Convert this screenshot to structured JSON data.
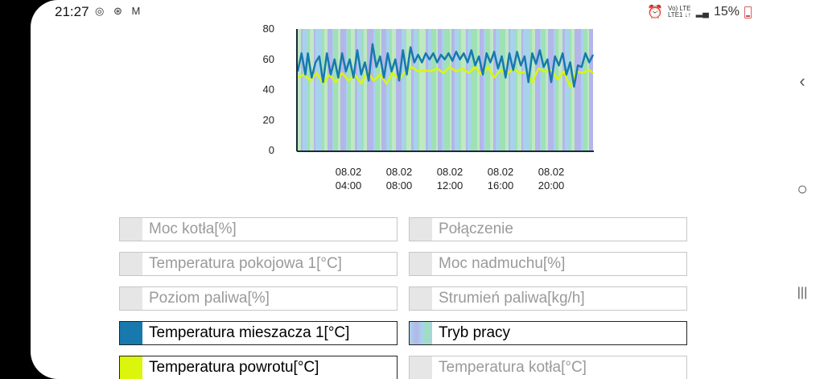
{
  "status": {
    "time": "21:27",
    "left_icons": "◎ ⊛ M",
    "net": "Vo) LTE",
    "net2": "LTE1 ↓↑",
    "battery": "15%"
  },
  "chart_data": {
    "type": "line",
    "ylim": [
      0,
      80
    ],
    "y_ticks": [
      "0",
      "20",
      "40",
      "60",
      "80"
    ],
    "x_ticks": [
      {
        "date": "08.02",
        "time": "04:00"
      },
      {
        "date": "08.02",
        "time": "08:00"
      },
      {
        "date": "08.02",
        "time": "12:00"
      },
      {
        "date": "08.02",
        "time": "16:00"
      },
      {
        "date": "08.02",
        "time": "20:00"
      }
    ],
    "x_range_hours": [
      0,
      23.3
    ],
    "series": [
      {
        "name": "Temperatura mieszacza 1[°C]",
        "color": "#1779ad",
        "x": [
          0,
          0.3,
          0.6,
          0.8,
          1.1,
          1.4,
          1.7,
          2.0,
          2.3,
          2.6,
          2.9,
          3.2,
          3.5,
          3.8,
          4.1,
          4.4,
          4.7,
          5.0,
          5.3,
          5.6,
          5.9,
          6.2,
          6.5,
          6.8,
          7.1,
          7.4,
          7.7,
          8.0,
          8.3,
          8.6,
          8.9,
          9.2,
          9.5,
          9.8,
          10.1,
          10.4,
          10.7,
          11.0,
          11.3,
          11.6,
          11.9,
          12.2,
          12.5,
          12.8,
          13.1,
          13.4,
          13.7,
          14.0,
          14.3,
          14.6,
          14.9,
          15.2,
          15.5,
          15.8,
          16.1,
          16.4,
          16.7,
          17.0,
          17.3,
          17.6,
          17.9,
          18.2,
          18.5,
          18.8,
          19.1,
          19.4,
          19.7,
          20.0,
          20.3,
          20.6,
          20.9,
          21.2,
          21.5,
          21.8,
          22.1,
          22.4,
          22.7,
          23.0,
          23.3
        ],
        "values": [
          52,
          64,
          50,
          64,
          48,
          58,
          62,
          45,
          64,
          50,
          60,
          48,
          64,
          52,
          60,
          48,
          66,
          50,
          58,
          46,
          70,
          55,
          62,
          48,
          64,
          52,
          60,
          46,
          66,
          50,
          68,
          58,
          63,
          58,
          64,
          60,
          64,
          58,
          63,
          60,
          64,
          59,
          65,
          60,
          64,
          58,
          66,
          56,
          62,
          50,
          64,
          58,
          65,
          54,
          62,
          48,
          64,
          53,
          65,
          56,
          62,
          45,
          64,
          57,
          66,
          55,
          60,
          45,
          62,
          56,
          64,
          50,
          58,
          42,
          56,
          55,
          64,
          58,
          63
        ]
      },
      {
        "name": "Temperatura powrotu[°C]",
        "color": "#dcf50d",
        "x": [
          0,
          0.5,
          1.0,
          1.5,
          2.0,
          2.5,
          3.0,
          3.5,
          4.0,
          4.5,
          5.0,
          5.5,
          6.0,
          6.5,
          7.0,
          7.5,
          8.0,
          8.5,
          9.0,
          9.5,
          10.0,
          10.5,
          11.0,
          11.5,
          12.0,
          12.5,
          13.0,
          13.5,
          14.0,
          14.5,
          15.0,
          15.5,
          16.0,
          16.5,
          17.0,
          17.5,
          18.0,
          18.5,
          19.0,
          19.5,
          20.0,
          20.5,
          21.0,
          21.5,
          22.0,
          22.5,
          23.0,
          23.3
        ],
        "values": [
          48,
          50,
          46,
          51,
          44,
          50,
          45,
          51,
          46,
          50,
          44,
          52,
          46,
          50,
          44,
          51,
          47,
          52,
          55,
          52,
          53,
          52,
          54,
          51,
          55,
          52,
          54,
          51,
          55,
          50,
          55,
          48,
          53,
          50,
          54,
          51,
          52,
          45,
          54,
          52,
          53,
          47,
          52,
          42,
          52,
          51,
          53,
          51
        ]
      }
    ],
    "background_bands": [
      "#9fe0b6",
      "#a7d2ec",
      "#b4b6ea",
      "#bfe8c3"
    ]
  },
  "legend": [
    {
      "label": "Moc kotła[%]",
      "active": false,
      "color": "#e6e6e6"
    },
    {
      "label": "Połączenie",
      "active": false,
      "color": "#e6e6e6"
    },
    {
      "label": "Temperatura pokojowa 1[°C]",
      "active": false,
      "color": "#e6e6e6"
    },
    {
      "label": "Moc nadmuchu[%]",
      "active": false,
      "color": "#e6e6e6"
    },
    {
      "label": "Poziom paliwa[%]",
      "active": false,
      "color": "#e6e6e6"
    },
    {
      "label": "Strumień paliwa[kg/h]",
      "active": false,
      "color": "#e6e6e6"
    },
    {
      "label": "Temperatura mieszacza 1[°C]",
      "active": true,
      "color": "#1779ad"
    },
    {
      "label": "Tryb pracy",
      "active": true,
      "color": "tryb"
    },
    {
      "label": "Temperatura powrotu[°C]",
      "active": true,
      "color": "#dcf50d"
    },
    {
      "label": "Temperatura kotła[°C]",
      "active": false,
      "color": "#e6e6e6"
    }
  ],
  "nav": {
    "back": "‹",
    "home": "○",
    "recent": "|||"
  }
}
